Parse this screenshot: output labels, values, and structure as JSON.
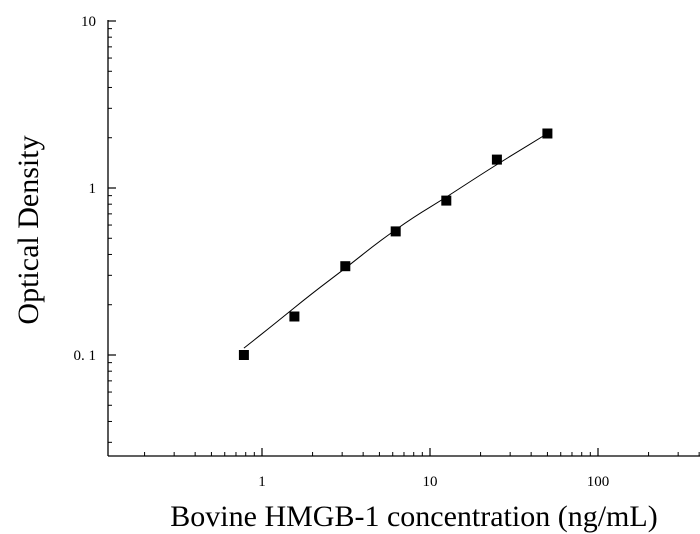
{
  "chart_data": {
    "type": "scatter",
    "title": "",
    "xlabel": "Bovine HMGB-1 concentration (ng/mL)",
    "ylabel": "Optical Density",
    "xscale": "log",
    "yscale": "log",
    "xlim": [
      0.1,
      400
    ],
    "ylim": [
      0.03,
      10
    ],
    "x_ticks": [
      {
        "value": 1,
        "label": "1"
      },
      {
        "value": 10,
        "label": "10"
      },
      {
        "value": 100,
        "label": "100"
      }
    ],
    "y_ticks": [
      {
        "value": 0.1,
        "label": "0. 1"
      },
      {
        "value": 1,
        "label": "1"
      },
      {
        "value": 10,
        "label": "10"
      }
    ],
    "grid": false,
    "legend": "none",
    "series": [
      {
        "marker": "square",
        "color": "#000000",
        "x": [
          0.78,
          1.56,
          3.13,
          6.25,
          12.5,
          25,
          50
        ],
        "y": [
          0.1,
          0.17,
          0.34,
          0.55,
          0.84,
          1.48,
          2.12
        ]
      }
    ],
    "fit_curve": {
      "color": "#000000",
      "x": [
        0.78,
        1.2,
        2,
        3.13,
        5,
        8,
        12.5,
        20,
        30,
        50
      ],
      "y": [
        0.11,
        0.155,
        0.235,
        0.33,
        0.48,
        0.67,
        0.88,
        1.2,
        1.55,
        2.12
      ]
    }
  }
}
